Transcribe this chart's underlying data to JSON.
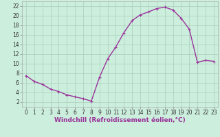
{
  "hours": [
    0,
    1,
    2,
    3,
    4,
    5,
    6,
    7,
    8,
    9,
    10,
    11,
    12,
    13,
    14,
    15,
    16,
    17,
    18,
    19,
    20,
    21,
    22,
    23
  ],
  "values": [
    7.5,
    6.3,
    5.7,
    4.7,
    4.2,
    3.5,
    3.1,
    2.7,
    2.2,
    7.2,
    11.0,
    13.5,
    16.5,
    19.0,
    20.2,
    20.8,
    21.5,
    21.8,
    21.2,
    19.5,
    17.2,
    10.3,
    10.7,
    10.5
  ],
  "line_color": "#993399",
  "marker": "+",
  "bg_color": "#cceedd",
  "grid_color": "#aaccbb",
  "xlabel": "Windchill (Refroidissement éolien,°C)",
  "ylim": [
    1,
    23
  ],
  "xlim": [
    -0.5,
    23.5
  ],
  "yticks": [
    2,
    4,
    6,
    8,
    10,
    12,
    14,
    16,
    18,
    20,
    22
  ],
  "xticks": [
    0,
    1,
    2,
    3,
    4,
    5,
    6,
    7,
    8,
    9,
    10,
    11,
    12,
    13,
    14,
    15,
    16,
    17,
    18,
    19,
    20,
    21,
    22,
    23
  ],
  "tick_fontsize": 5.5,
  "xlabel_fontsize": 6.5,
  "line_width": 1.0,
  "marker_size": 3.5,
  "marker_edge_width": 0.8
}
